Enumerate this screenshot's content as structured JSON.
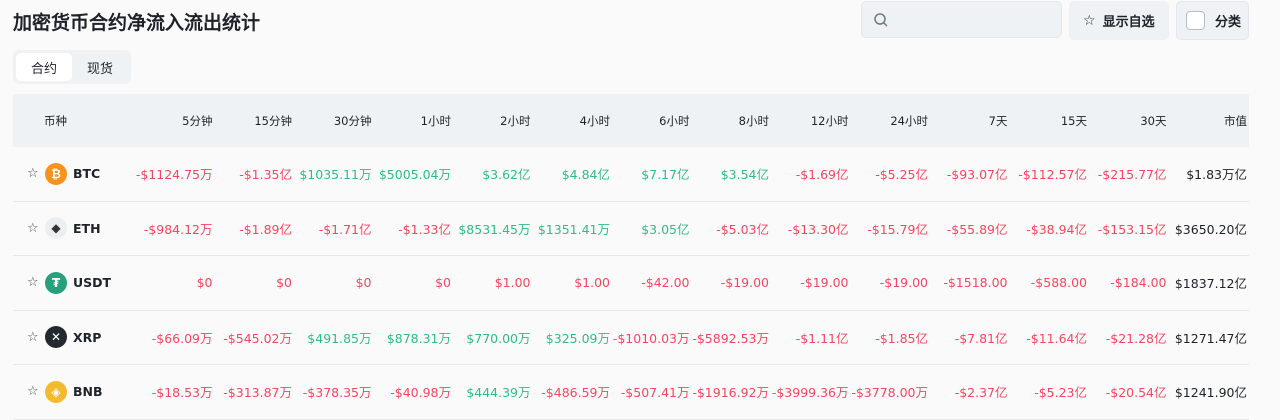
{
  "title": "加密货币合约净流入流出统计",
  "search": {
    "placeholder": ""
  },
  "buttons": {
    "favorites": "显示自选",
    "category": "分类"
  },
  "tabs": [
    {
      "label": "合约",
      "active": true
    },
    {
      "label": "现货",
      "active": false
    }
  ],
  "colors": {
    "negative": "#f6465d",
    "positive": "#2ebd85"
  },
  "columns": [
    "币种",
    "5分钟",
    "15分钟",
    "30分钟",
    "1小时",
    "2小时",
    "4小时",
    "6小时",
    "8小时",
    "12小时",
    "24小时",
    "7天",
    "15天",
    "30天",
    "市值"
  ],
  "rows": [
    {
      "coin": "BTC",
      "icon": "bitcoin-icon",
      "logo_color": "#f7931a",
      "glyph": "₿",
      "values": [
        "-$1124.75万",
        "-$1.35亿",
        "$1035.11万",
        "$5005.04万",
        "$3.62亿",
        "$4.84亿",
        "$7.17亿",
        "$3.54亿",
        "-$1.69亿",
        "-$5.25亿",
        "-$93.07亿",
        "-$112.57亿",
        "-$215.77亿"
      ],
      "signs": [
        "neg",
        "neg",
        "pos",
        "pos",
        "pos",
        "pos",
        "pos",
        "pos",
        "neg",
        "neg",
        "neg",
        "neg",
        "neg"
      ],
      "market_cap": "$1.83万亿"
    },
    {
      "coin": "ETH",
      "icon": "ethereum-icon",
      "logo_color": "#eceff1",
      "glyph": "◆",
      "values": [
        "-$984.12万",
        "-$1.89亿",
        "-$1.71亿",
        "-$1.33亿",
        "$8531.45万",
        "$1351.41万",
        "$3.05亿",
        "-$5.03亿",
        "-$13.30亿",
        "-$15.79亿",
        "-$55.89亿",
        "-$38.94亿",
        "-$153.15亿"
      ],
      "signs": [
        "neg",
        "neg",
        "neg",
        "neg",
        "pos",
        "pos",
        "pos",
        "neg",
        "neg",
        "neg",
        "neg",
        "neg",
        "neg"
      ],
      "market_cap": "$3650.20亿"
    },
    {
      "coin": "USDT",
      "icon": "tether-icon",
      "logo_color": "#26a17b",
      "glyph": "₮",
      "values": [
        "$0",
        "$0",
        "$0",
        "$0",
        "$1.00",
        "$1.00",
        "-$42.00",
        "-$19.00",
        "-$19.00",
        "-$19.00",
        "-$1518.00",
        "-$588.00",
        "-$184.00"
      ],
      "signs": [
        "neg",
        "neg",
        "neg",
        "neg",
        "neg",
        "neg",
        "neg",
        "neg",
        "neg",
        "neg",
        "neg",
        "neg",
        "neg"
      ],
      "market_cap": "$1837.12亿"
    },
    {
      "coin": "XRP",
      "icon": "xrp-icon",
      "logo_color": "#23292f",
      "glyph": "✕",
      "values": [
        "-$66.09万",
        "-$545.02万",
        "$491.85万",
        "$878.31万",
        "$770.00万",
        "$325.09万",
        "-$1010.03万",
        "-$5892.53万",
        "-$1.11亿",
        "-$1.85亿",
        "-$7.81亿",
        "-$11.64亿",
        "-$21.28亿"
      ],
      "signs": [
        "neg",
        "neg",
        "pos",
        "pos",
        "pos",
        "pos",
        "neg",
        "neg",
        "neg",
        "neg",
        "neg",
        "neg",
        "neg"
      ],
      "market_cap": "$1271.47亿"
    },
    {
      "coin": "BNB",
      "icon": "bnb-icon",
      "logo_color": "#f3ba2f",
      "glyph": "◈",
      "values": [
        "-$18.53万",
        "-$313.87万",
        "-$378.35万",
        "-$40.98万",
        "$444.39万",
        "-$486.59万",
        "-$507.41万",
        "-$1916.92万",
        "-$3999.36万",
        "-$3778.00万",
        "-$2.37亿",
        "-$5.23亿",
        "-$20.54亿"
      ],
      "signs": [
        "neg",
        "neg",
        "neg",
        "neg",
        "pos",
        "neg",
        "neg",
        "neg",
        "neg",
        "neg",
        "neg",
        "neg",
        "neg"
      ],
      "market_cap": "$1241.90亿"
    }
  ]
}
